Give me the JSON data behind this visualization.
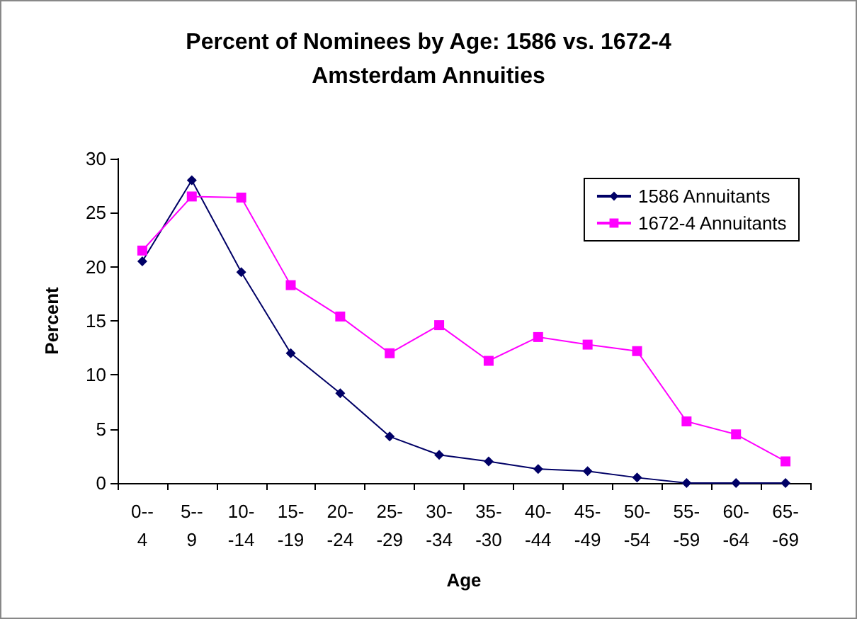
{
  "chart_data": {
    "type": "line",
    "title": "Percent of Nominees by Age: 1586 vs. 1672-4\nAmsterdam Annuities",
    "xlabel": "Age",
    "ylabel": "Percent",
    "categories": [
      "0--\n4",
      "5--\n9",
      "10-\n-14",
      "15-\n-19",
      "20-\n-24",
      "25-\n-29",
      "30-\n-34",
      "35-\n-30",
      "40-\n-44",
      "45-\n-49",
      "50-\n-54",
      "55-\n-59",
      "60-\n-64",
      "65-\n-69"
    ],
    "series": [
      {
        "name": "1586 Annuitants",
        "color": "#000066",
        "marker": "diamond",
        "values": [
          20.5,
          28,
          19.5,
          12,
          8.3,
          4.3,
          2.6,
          2.0,
          1.3,
          1.1,
          0.5,
          0,
          0,
          0
        ]
      },
      {
        "name": "1672-4 Annuitants",
        "color": "#ff00ff",
        "marker": "square",
        "values": [
          21.5,
          26.5,
          26.4,
          18.3,
          15.4,
          12,
          14.6,
          11.3,
          13.5,
          12.8,
          12.2,
          5.7,
          4.5,
          2.0
        ]
      }
    ],
    "ylim": [
      0,
      30
    ],
    "yticks": [
      0,
      5,
      10,
      15,
      20,
      25,
      30
    ],
    "grid": false,
    "legend": "top right",
    "line_style": "solid"
  }
}
